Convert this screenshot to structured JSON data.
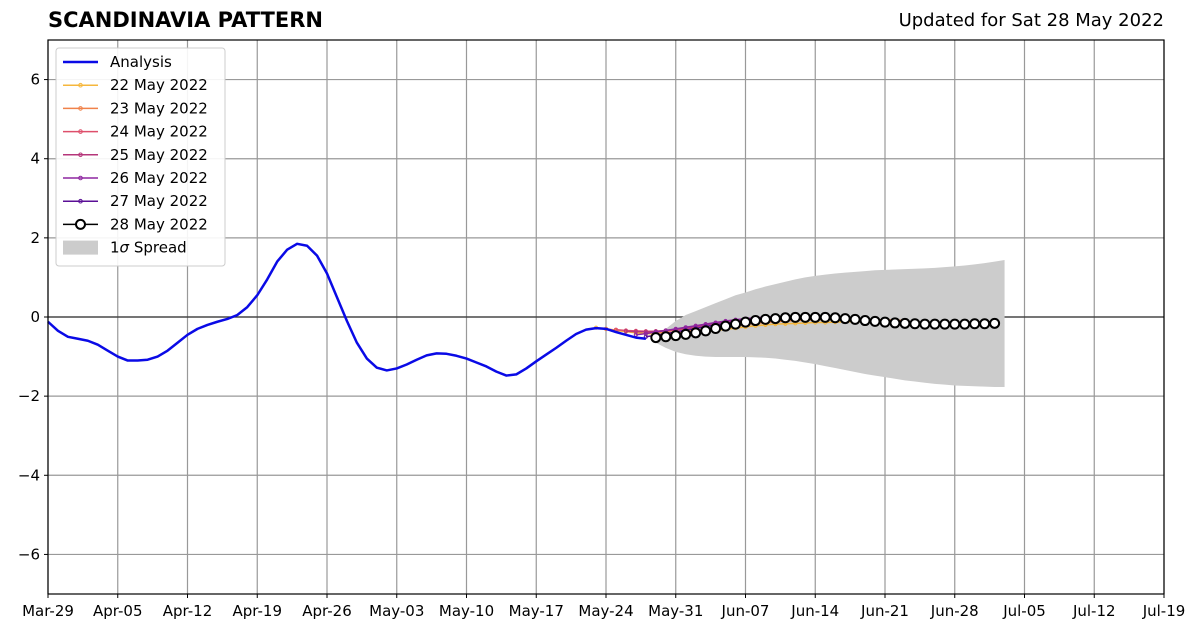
{
  "header": {
    "title": "SCANDINAVIA PATTERN",
    "subtitle": "Updated for Sat 28 May 2022"
  },
  "chart_data": {
    "type": "line",
    "title": "SCANDINAVIA PATTERN",
    "xlabel": "",
    "ylabel": "",
    "x_ticks": [
      "Mar-29",
      "Apr-05",
      "Apr-12",
      "Apr-19",
      "Apr-26",
      "May-03",
      "May-10",
      "May-17",
      "May-24",
      "May-31",
      "Jun-07",
      "Jun-14",
      "Jun-21",
      "Jun-28",
      "Jul-05",
      "Jul-12",
      "Jul-19"
    ],
    "y_ticks": [
      "6",
      "4",
      "2",
      "0",
      "−2",
      "−4",
      "−6"
    ],
    "ylim": [
      -7,
      7
    ],
    "xlim_days": [
      0,
      112
    ],
    "grid": true,
    "legend_position": "top-left",
    "series": [
      {
        "name": "Analysis",
        "color": "#0a0ae6",
        "x_start_day": 0,
        "values": [
          -0.12,
          -0.35,
          -0.5,
          -0.55,
          -0.6,
          -0.7,
          -0.85,
          -1.0,
          -1.1,
          -1.1,
          -1.08,
          -1.0,
          -0.85,
          -0.65,
          -0.45,
          -0.3,
          -0.2,
          -0.12,
          -0.05,
          0.05,
          0.25,
          0.55,
          0.95,
          1.4,
          1.7,
          1.85,
          1.8,
          1.55,
          1.1,
          0.5,
          -0.1,
          -0.65,
          -1.05,
          -1.28,
          -1.35,
          -1.3,
          -1.2,
          -1.08,
          -0.97,
          -0.92,
          -0.93,
          -0.98,
          -1.05,
          -1.15,
          -1.25,
          -1.38,
          -1.48,
          -1.45,
          -1.3,
          -1.12,
          -0.95,
          -0.78,
          -0.6,
          -0.43,
          -0.32,
          -0.28,
          -0.3,
          -0.38,
          -0.45,
          -0.52,
          -0.55
        ]
      },
      {
        "name": "22 May 2022",
        "color": "#f6b73c",
        "x_start_day": 55,
        "values": [
          -0.27,
          -0.3,
          -0.34,
          -0.37,
          -0.4,
          -0.42,
          -0.43,
          -0.43,
          -0.42,
          -0.41,
          -0.39,
          -0.37,
          -0.34,
          -0.31,
          -0.28,
          -0.25,
          -0.22,
          -0.2,
          -0.18,
          -0.17,
          -0.16,
          -0.15,
          -0.14,
          -0.14,
          -0.13,
          -0.12,
          -0.12,
          -0.11,
          -0.11,
          -0.1,
          -0.1
        ]
      },
      {
        "name": "23 May 2022",
        "color": "#f0824a",
        "x_start_day": 56,
        "values": [
          -0.3,
          -0.33,
          -0.35,
          -0.37,
          -0.38,
          -0.39,
          -0.39,
          -0.38,
          -0.36,
          -0.34,
          -0.31,
          -0.28,
          -0.25,
          -0.22,
          -0.19,
          -0.16,
          -0.14,
          -0.12,
          -0.1,
          -0.09,
          -0.08,
          -0.07,
          -0.07,
          -0.06,
          -0.06,
          -0.06,
          -0.06,
          -0.07,
          -0.07,
          -0.08,
          -0.09
        ]
      },
      {
        "name": "24 May 2022",
        "color": "#de4f6b",
        "x_start_day": 57,
        "values": [
          -0.32,
          -0.34,
          -0.35,
          -0.36,
          -0.36,
          -0.35,
          -0.33,
          -0.3,
          -0.27,
          -0.24,
          -0.21,
          -0.17,
          -0.14,
          -0.1,
          -0.08,
          -0.05,
          -0.04,
          -0.02,
          -0.02
        ]
      },
      {
        "name": "25 May 2022",
        "color": "#b5367a",
        "x_start_day": 58,
        "values": [
          -0.36,
          -0.37,
          -0.37,
          -0.36,
          -0.34,
          -0.31,
          -0.28,
          -0.24,
          -0.2,
          -0.16,
          -0.12,
          -0.09,
          -0.06,
          -0.03,
          -0.01,
          0.0,
          0.01
        ]
      },
      {
        "name": "26 May 2022",
        "color": "#8e26a0",
        "x_start_day": 59,
        "values": [
          -0.45,
          -0.42,
          -0.38,
          -0.34,
          -0.3,
          -0.26,
          -0.22,
          -0.18,
          -0.14,
          -0.1,
          -0.07,
          -0.04,
          -0.02,
          0.0,
          0.01,
          0.02
        ]
      },
      {
        "name": "27 May 2022",
        "color": "#5a0f96",
        "x_start_day": 60,
        "values": [
          -0.5,
          -0.46,
          -0.42,
          -0.38,
          -0.33,
          -0.29,
          -0.24,
          -0.2,
          -0.16,
          -0.12,
          -0.08,
          -0.05,
          -0.02,
          0.0
        ]
      },
      {
        "name": "28 May 2022",
        "color": "#000000",
        "marker": "open-circle",
        "x_start_day": 61,
        "values": [
          -0.52,
          -0.5,
          -0.47,
          -0.44,
          -0.4,
          -0.35,
          -0.29,
          -0.23,
          -0.18,
          -0.13,
          -0.09,
          -0.06,
          -0.04,
          -0.02,
          -0.01,
          -0.01,
          -0.01,
          -0.01,
          -0.02,
          -0.04,
          -0.06,
          -0.09,
          -0.11,
          -0.13,
          -0.15,
          -0.16,
          -0.17,
          -0.18,
          -0.18,
          -0.18,
          -0.18,
          -0.18,
          -0.17,
          -0.17,
          -0.16
        ]
      }
    ],
    "spread": {
      "name": "1σ Spread",
      "label_prefix": "1",
      "label_symbol": "σ",
      "label_suffix": " Spread",
      "color": "#cccccc",
      "x_start_day": 61,
      "upper": [
        -0.5,
        -0.3,
        -0.1,
        0.05,
        0.15,
        0.25,
        0.35,
        0.45,
        0.55,
        0.62,
        0.7,
        0.77,
        0.83,
        0.89,
        0.95,
        1.0,
        1.04,
        1.07,
        1.1,
        1.12,
        1.14,
        1.16,
        1.18,
        1.19,
        1.2,
        1.21,
        1.22,
        1.23,
        1.24,
        1.26,
        1.28,
        1.3,
        1.33,
        1.36,
        1.4,
        1.44
      ],
      "lower": [
        -0.65,
        -0.78,
        -0.88,
        -0.94,
        -0.98,
        -1.0,
        -1.01,
        -1.01,
        -1.01,
        -1.01,
        -1.02,
        -1.03,
        -1.05,
        -1.08,
        -1.11,
        -1.15,
        -1.19,
        -1.24,
        -1.29,
        -1.34,
        -1.39,
        -1.44,
        -1.48,
        -1.52,
        -1.56,
        -1.6,
        -1.63,
        -1.66,
        -1.69,
        -1.71,
        -1.73,
        -1.74,
        -1.75,
        -1.76,
        -1.77,
        -1.77
      ]
    }
  }
}
